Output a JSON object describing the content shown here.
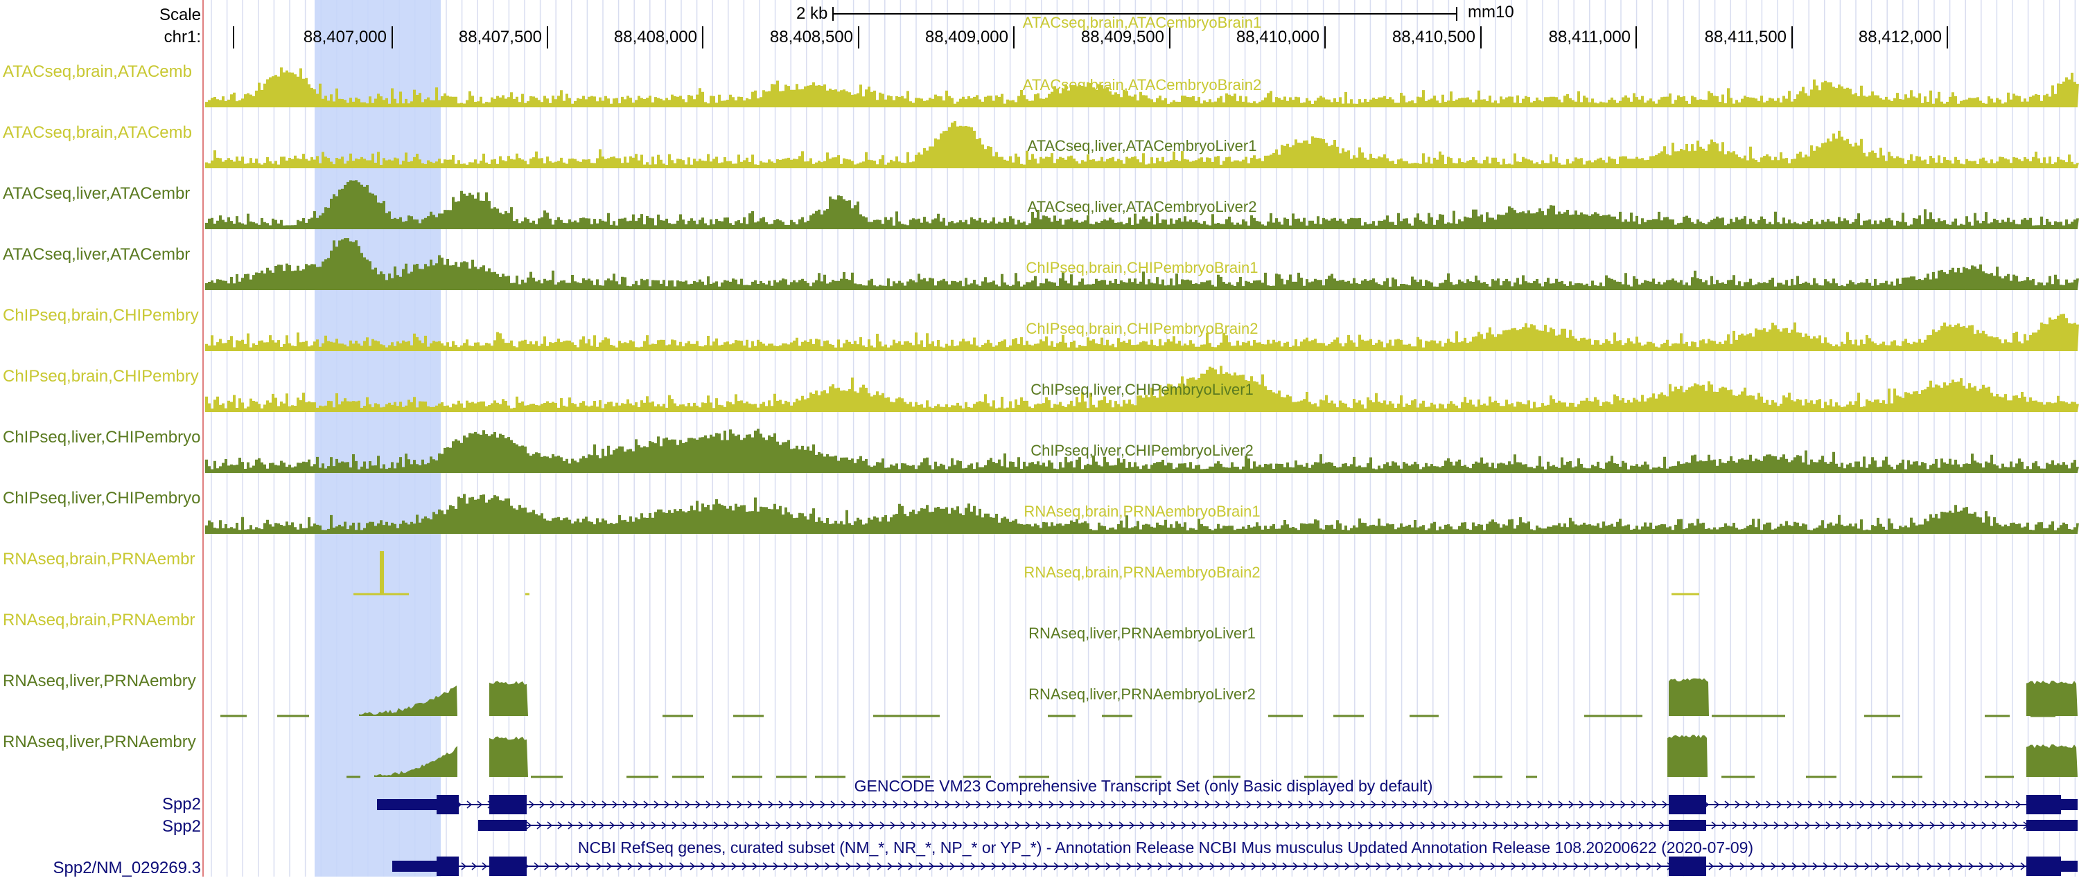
{
  "colors": {
    "brain": "#c8c832",
    "liver": "#6b8a2c",
    "gene": "#0c0c78",
    "highlight": "#c7d6fa",
    "grid": "#d8ddf0",
    "label_brain": "#c8c832",
    "label_liver": "#5a7a20"
  },
  "ruler": {
    "scale_label": "Scale",
    "chrom_label": "chr1:",
    "scalebar_label": "2 kb",
    "assembly": "mm10",
    "ticks": [
      "88,407,000",
      "88,407,500",
      "88,408,000",
      "88,408,500",
      "88,409,000",
      "88,409,500",
      "88,410,000",
      "88,410,500",
      "88,411,000",
      "88,411,500",
      "88,412,000"
    ]
  },
  "tracks": [
    {
      "label": "ATACseq,brain,ATACemb",
      "title": "ATACseq,brain,ATACembryoBrain1",
      "tissue": "brain"
    },
    {
      "label": "ATACseq,brain,ATACemb",
      "title": "ATACseq,brain,ATACembryoBrain2",
      "tissue": "brain"
    },
    {
      "label": "ATACseq,liver,ATACembr",
      "title": "ATACseq,liver,ATACembryoLiver1",
      "tissue": "liver"
    },
    {
      "label": "ATACseq,liver,ATACembr",
      "title": "ATACseq,liver,ATACembryoLiver2",
      "tissue": "liver"
    },
    {
      "label": "ChIPseq,brain,CHIPembry",
      "title": "ChIPseq,brain,CHIPembryoBrain1",
      "tissue": "brain"
    },
    {
      "label": "ChIPseq,brain,CHIPembry",
      "title": "ChIPseq,brain,CHIPembryoBrain2",
      "tissue": "brain"
    },
    {
      "label": "ChIPseq,liver,CHIPembryo",
      "title": "ChIPseq,liver,CHIPembryoLiver1",
      "tissue": "liver"
    },
    {
      "label": "ChIPseq,liver,CHIPembryo",
      "title": "ChIPseq,liver,CHIPembryoLiver2",
      "tissue": "liver"
    },
    {
      "label": "RNAseq,brain,PRNAembr",
      "title": "RNAseq,brain,PRNAembryoBrain1",
      "tissue": "brain"
    },
    {
      "label": "RNAseq,brain,PRNAembr",
      "title": "RNAseq,brain,PRNAembryoBrain2",
      "tissue": "brain"
    },
    {
      "label": "RNAseq,liver,PRNAembry",
      "title": "RNAseq,liver,PRNAembryoLiver1",
      "tissue": "liver"
    },
    {
      "label": "RNAseq,liver,PRNAembry",
      "title": "RNAseq,liver,PRNAembryoLiver2",
      "tissue": "liver"
    }
  ],
  "gencode": {
    "title": "GENCODE VM23 Comprehensive Transcript Set (only Basic displayed by default)",
    "labels": [
      "Spp2",
      "Spp2"
    ]
  },
  "refseq": {
    "title": "NCBI RefSeq genes, curated subset (NM_*, NR_*, NP_* or YP_*) - Annotation Release NCBI Mus musculus Updated Annotation Release 108.20200622 (2020-07-09)",
    "labels": [
      "Spp2/NM_029269.3"
    ]
  }
}
